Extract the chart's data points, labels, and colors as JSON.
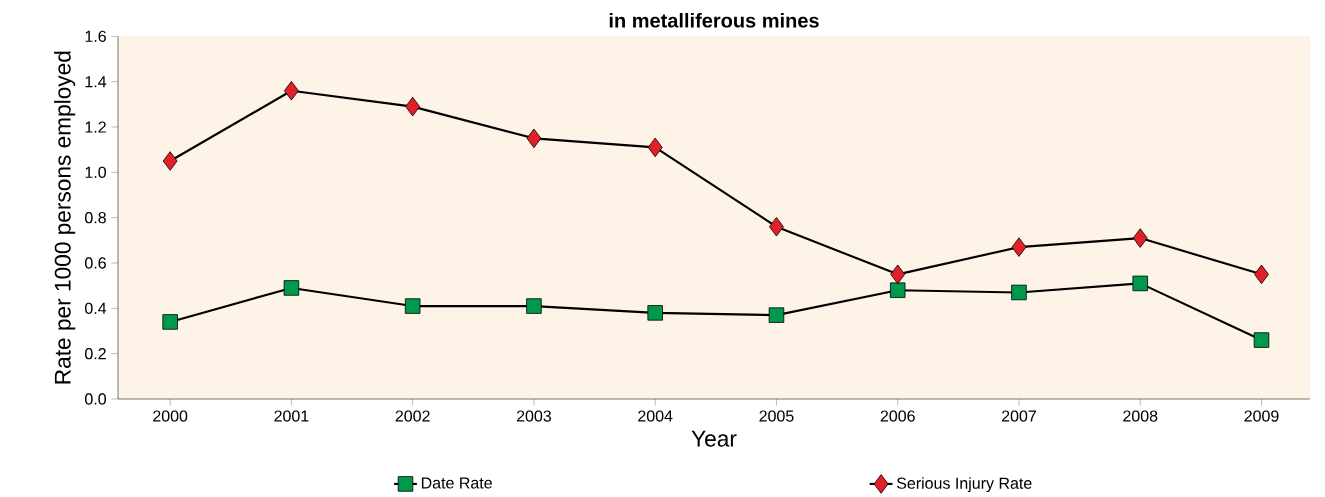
{
  "chart_data": {
    "type": "line",
    "title": "in metalliferous mines",
    "xlabel": "Year",
    "ylabel": "Rate per 1000 persons employed",
    "categories": [
      "2000",
      "2001",
      "2002",
      "2003",
      "2004",
      "2005",
      "2006",
      "2007",
      "2008",
      "2009"
    ],
    "series": [
      {
        "name": "Date Rate",
        "color": "#00984a",
        "marker": "square",
        "values": [
          0.34,
          0.49,
          0.41,
          0.41,
          0.38,
          0.37,
          0.48,
          0.47,
          0.51,
          0.26
        ]
      },
      {
        "name": "Serious Injury Rate",
        "color": "#e2202a",
        "marker": "diamond",
        "values": [
          1.05,
          1.36,
          1.29,
          1.15,
          1.11,
          0.76,
          0.55,
          0.67,
          0.71,
          0.55
        ]
      }
    ],
    "ylim": [
      0,
      1.6
    ],
    "yticks": [
      {
        "value": 0,
        "label": "0.0"
      },
      {
        "value": 0.2,
        "label": "0.2"
      },
      {
        "value": 0.4,
        "label": "0.4"
      },
      {
        "value": 0.6,
        "label": "0.6"
      },
      {
        "value": 0.8,
        "label": "0.8"
      },
      {
        "value": 1.0,
        "label": "1.0"
      },
      {
        "value": 1.2,
        "label": "1.2"
      },
      {
        "value": 1.4,
        "label": "1.4"
      },
      {
        "value": 1.6,
        "label": "1.6"
      }
    ],
    "grid": false,
    "legend": "bottom",
    "line_style": "solid"
  }
}
